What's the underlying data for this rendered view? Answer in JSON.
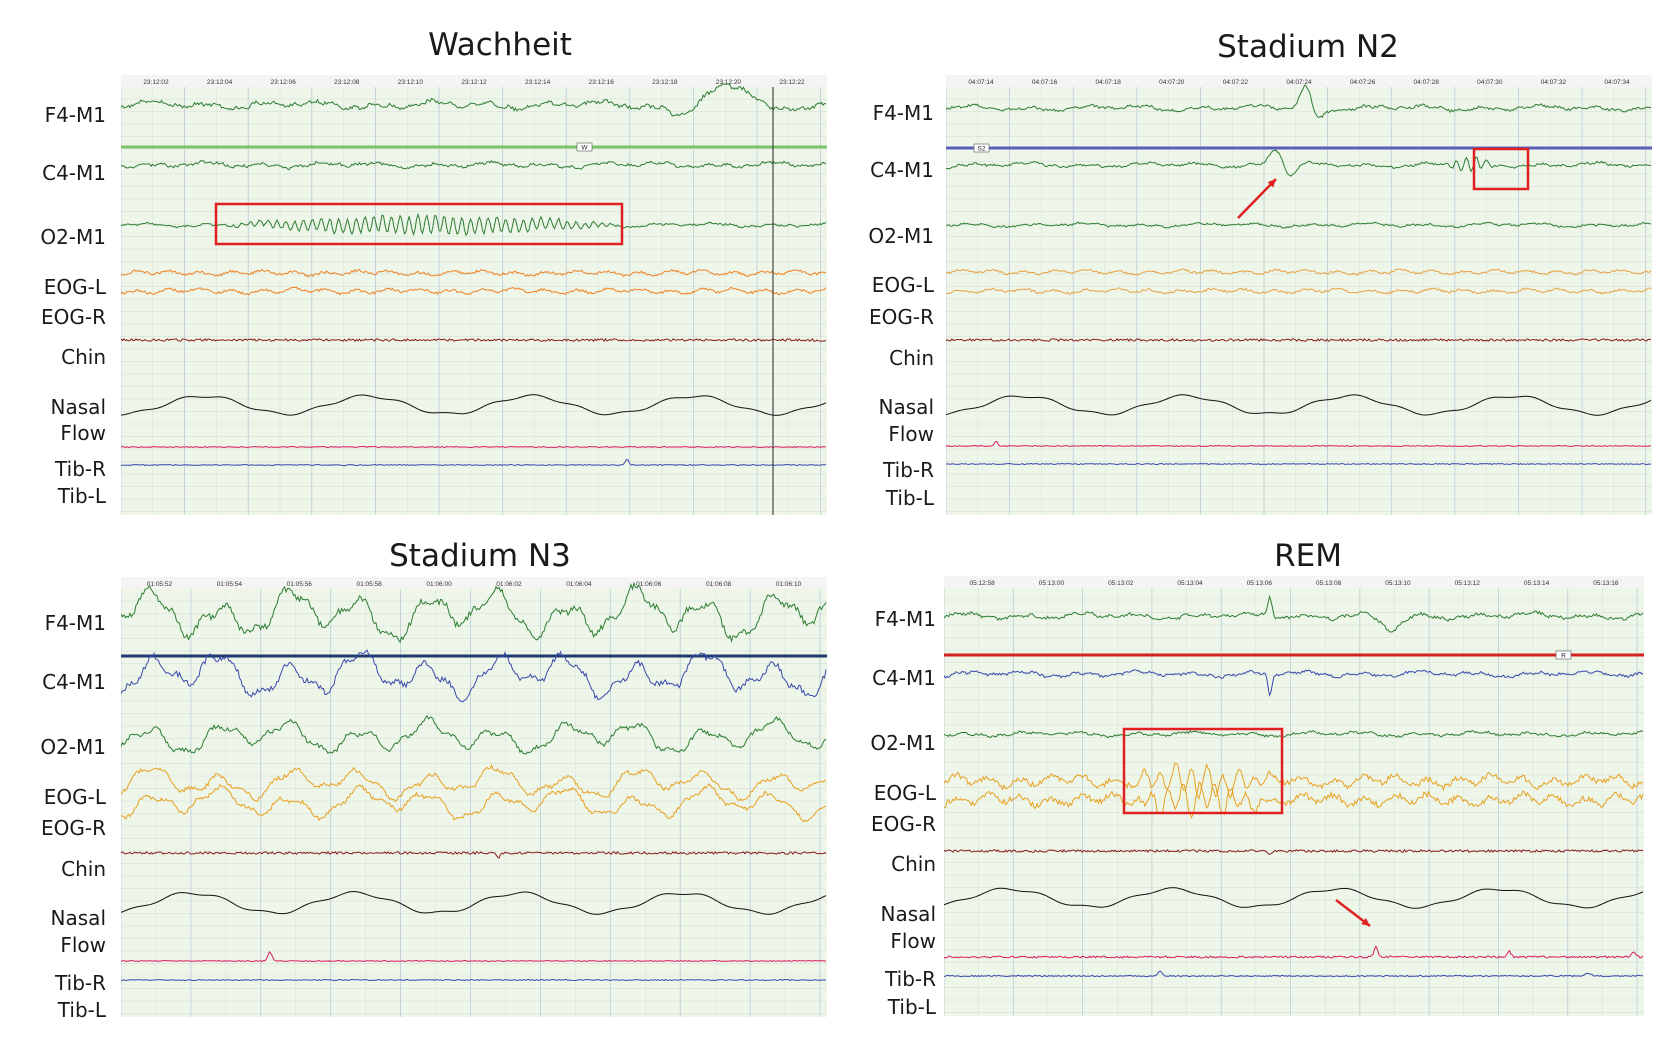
{
  "chart_data": [
    {
      "type": "line",
      "title": "Wachheit",
      "time_ticks": [
        "23:12:02",
        "23:12:04",
        "23:12:06",
        "23:12:08",
        "23:12:10",
        "23:12:12",
        "23:12:14",
        "23:12:16",
        "23:12:18",
        "23:12:20",
        "23:12:22"
      ],
      "hypnogram_marker": "W",
      "series": [
        {
          "name": "F4-M1",
          "color": "#2e7d32"
        },
        {
          "name": "C4-M1",
          "color": "#2e7d32"
        },
        {
          "name": "O2-M1",
          "color": "#2e7d32"
        },
        {
          "name": "EOG-L",
          "color": "#f08020"
        },
        {
          "name": "EOG-R",
          "color": "#f08020"
        },
        {
          "name": "Chin",
          "color": "#8b1a1a"
        },
        {
          "name": "Nasal Flow",
          "color": "#111111"
        },
        {
          "name": "Tib-R",
          "color": "#d81b60"
        },
        {
          "name": "Tib-L",
          "color": "#3949ab"
        }
      ],
      "grid": true
    },
    {
      "type": "line",
      "title": "Stadium N2",
      "time_ticks": [
        "04:07:14",
        "04:07:16",
        "04:07:18",
        "04:07:20",
        "04:07:22",
        "04:07:24",
        "04:07:26",
        "04:07:28",
        "04:07:30",
        "04:07:32",
        "04:07:34"
      ],
      "hypnogram_marker": "S2",
      "series": [
        {
          "name": "F4-M1",
          "color": "#2e7d32"
        },
        {
          "name": "C4-M1",
          "color": "#2e7d32"
        },
        {
          "name": "O2-M1",
          "color": "#2e7d32"
        },
        {
          "name": "EOG-L",
          "color": "#e8a040"
        },
        {
          "name": "EOG-R",
          "color": "#e8a040"
        },
        {
          "name": "Chin",
          "color": "#8b1a1a"
        },
        {
          "name": "Nasal Flow",
          "color": "#111111"
        },
        {
          "name": "Tib-R",
          "color": "#d81b60"
        },
        {
          "name": "Tib-L",
          "color": "#3949ab"
        }
      ],
      "grid": true
    },
    {
      "type": "line",
      "title": "Stadium N3",
      "time_ticks": [
        "01:05:52",
        "01:05:54",
        "01:05:56",
        "01:05:58",
        "01:06:00",
        "01:06:02",
        "01:06:04",
        "01:06:06",
        "01:06:08",
        "01:06:10"
      ],
      "hypnogram_marker": "",
      "series": [
        {
          "name": "F4-M1",
          "color": "#2e7d32"
        },
        {
          "name": "C4-M1",
          "color": "#3949ab"
        },
        {
          "name": "O2-M1",
          "color": "#2e7d32"
        },
        {
          "name": "EOG-L",
          "color": "#e8a020"
        },
        {
          "name": "EOG-R",
          "color": "#e8a020"
        },
        {
          "name": "Chin",
          "color": "#8b1a1a"
        },
        {
          "name": "Nasal Flow",
          "color": "#111111"
        },
        {
          "name": "Tib-R",
          "color": "#d81b60"
        },
        {
          "name": "Tib-L",
          "color": "#3949ab"
        }
      ],
      "grid": true
    },
    {
      "type": "line",
      "title": "REM",
      "time_ticks": [
        "05:12:58",
        "05:13:00",
        "05:13:02",
        "05:13:04",
        "05:13:06",
        "05:13:08",
        "05:13:10",
        "05:13:12",
        "05:13:14",
        "05:13:16"
      ],
      "hypnogram_marker": "R",
      "series": [
        {
          "name": "F4-M1",
          "color": "#2e7d32"
        },
        {
          "name": "C4-M1",
          "color": "#3949ab"
        },
        {
          "name": "O2-M1",
          "color": "#2e7d32"
        },
        {
          "name": "EOG-L",
          "color": "#e8a020"
        },
        {
          "name": "EOG-R",
          "color": "#e8a020"
        },
        {
          "name": "Chin",
          "color": "#8b1a1a"
        },
        {
          "name": "Nasal Flow",
          "color": "#111111"
        },
        {
          "name": "Tib-R",
          "color": "#d81b60"
        },
        {
          "name": "Tib-L",
          "color": "#3949ab"
        }
      ],
      "grid": true
    }
  ],
  "labels": {
    "f4": "F4-M1",
    "c4": "C4-M1",
    "o2": "O2-M1",
    "eogl": "EOG-L",
    "eogr": "EOG-R",
    "chin": "Chin",
    "nasal": "Nasal",
    "flow": "Flow",
    "tibr": "Tib-R",
    "tibl": "Tib-L"
  },
  "colors": {
    "plot_bg": "#eef6ea",
    "grid": "#b9ccd6",
    "highlight_box": "#e02020"
  }
}
